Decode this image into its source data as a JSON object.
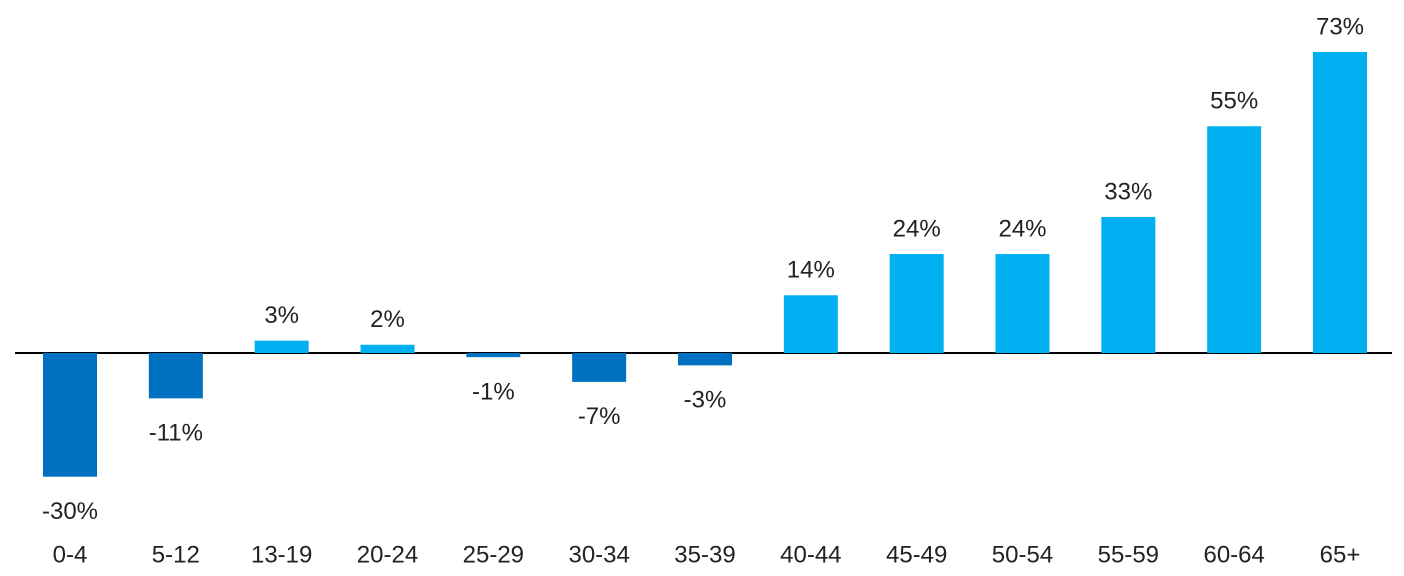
{
  "chart_data": {
    "type": "bar",
    "categories": [
      "0-4",
      "5-12",
      "13-19",
      "20-24",
      "25-29",
      "30-34",
      "35-39",
      "40-44",
      "45-49",
      "50-54",
      "55-59",
      "60-64",
      "65+"
    ],
    "values": [
      -30,
      -11,
      3,
      2,
      -1,
      -7,
      -3,
      14,
      24,
      24,
      33,
      55,
      73
    ],
    "value_labels": [
      "-30%",
      "-11%",
      "3%",
      "2%",
      "-1%",
      "-7%",
      "-3%",
      "14%",
      "24%",
      "24%",
      "33%",
      "55%",
      "73%"
    ],
    "color": "#00b0f0",
    "negative_color": "#0070c0"
  }
}
